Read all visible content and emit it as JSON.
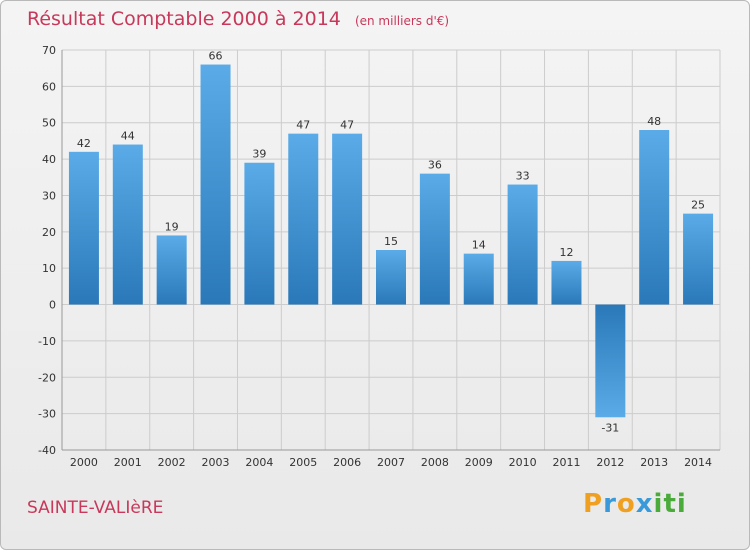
{
  "chart_data": {
    "type": "bar",
    "title": "Résultat Comptable 2000 à 2014",
    "subtitle": "(en milliers d'€)",
    "categories": [
      "2000",
      "2001",
      "2002",
      "2003",
      "2004",
      "2005",
      "2006",
      "2007",
      "2008",
      "2009",
      "2010",
      "2011",
      "2012",
      "2013",
      "2014"
    ],
    "values": [
      42,
      44,
      19,
      66,
      39,
      47,
      47,
      15,
      36,
      14,
      33,
      12,
      -31,
      48,
      25
    ],
    "ylim": [
      -40,
      70
    ],
    "yticks": [
      70,
      60,
      50,
      40,
      30,
      20,
      10,
      0,
      -10,
      -20,
      -30,
      -40
    ],
    "grid": true,
    "colors": {
      "bar_top": "#5aabe8",
      "bar_bottom": "#2a78b8",
      "grid": "#cccccc"
    }
  },
  "location": "SAINTE-VALIèRE",
  "brand": {
    "letters": [
      "P",
      "r",
      "o",
      "x",
      "i",
      "t",
      "i"
    ],
    "colors": [
      "#f0a020",
      "#3a9ad9",
      "#f0a020",
      "#3a9ad9",
      "#4aab3a",
      "#4aab3a",
      "#4aab3a"
    ]
  }
}
